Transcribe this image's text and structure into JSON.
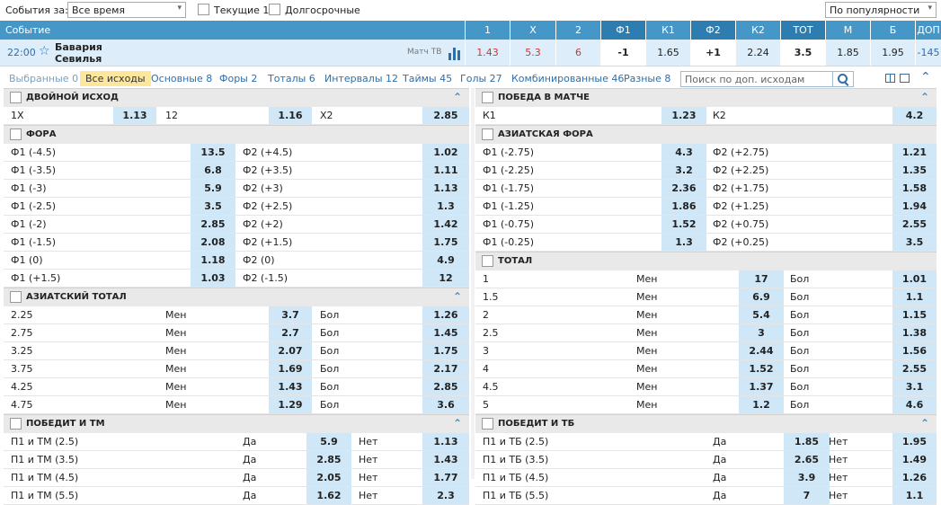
{
  "filter": {
    "events_label": "События за:",
    "period_value": "Все время",
    "current_label": "Текущие 1",
    "longterm_label": "Долгосрочные",
    "sort_value": "По популярности"
  },
  "header": {
    "event_col": "Событие",
    "cols": [
      "1",
      "X",
      "2",
      "Ф1",
      "К1",
      "Ф2",
      "К2",
      "ТОТ",
      "М",
      "Б",
      "ДОП"
    ]
  },
  "event": {
    "time": "22:00",
    "team1": "Бавария",
    "team2": "Севилья",
    "tv": "Матч ТВ",
    "odds": [
      "1.43",
      "5.3",
      "6",
      "-1",
      "1.65",
      "+1",
      "2.24",
      "3.5",
      "1.85",
      "1.95",
      "-145"
    ]
  },
  "tabs": [
    {
      "label": "Выбранные 0",
      "state": "muted"
    },
    {
      "label": "Все исходы",
      "state": "active"
    },
    {
      "label": "Основные 8",
      "state": ""
    },
    {
      "label": "Форы 2",
      "state": ""
    },
    {
      "label": "Тоталы 6",
      "state": ""
    },
    {
      "label": "Интервалы 12",
      "state": ""
    },
    {
      "label": "Таймы 45",
      "state": ""
    },
    {
      "label": "Голы 27",
      "state": ""
    },
    {
      "label": "Комбинированные 46",
      "state": ""
    },
    {
      "label": "Разные 8",
      "state": ""
    }
  ],
  "search": {
    "placeholder": "Поиск по доп. исходам"
  },
  "left": {
    "double": {
      "title": "ДВОЙНОЙ ИСХОД",
      "row": [
        "1X",
        "1.13",
        "12",
        "1.16",
        "X2",
        "2.85"
      ]
    },
    "fora": {
      "title": "ФОРА",
      "rows": [
        [
          "Ф1 (-4.5)",
          "13.5",
          "Ф2 (+4.5)",
          "1.02"
        ],
        [
          "Ф1 (-3.5)",
          "6.8",
          "Ф2 (+3.5)",
          "1.11"
        ],
        [
          "Ф1 (-3)",
          "5.9",
          "Ф2 (+3)",
          "1.13"
        ],
        [
          "Ф1 (-2.5)",
          "3.5",
          "Ф2 (+2.5)",
          "1.3"
        ],
        [
          "Ф1 (-2)",
          "2.85",
          "Ф2 (+2)",
          "1.42"
        ],
        [
          "Ф1 (-1.5)",
          "2.08",
          "Ф2 (+1.5)",
          "1.75"
        ],
        [
          "Ф1 (0)",
          "1.18",
          "Ф2 (0)",
          "4.9"
        ],
        [
          "Ф1 (+1.5)",
          "1.03",
          "Ф2 (-1.5)",
          "12"
        ]
      ]
    },
    "asiantotal": {
      "title": "АЗИАТСКИЙ ТОТАЛ",
      "rows": [
        [
          "2.25",
          "Мен",
          "3.7",
          "Бол",
          "1.26"
        ],
        [
          "2.75",
          "Мен",
          "2.7",
          "Бол",
          "1.45"
        ],
        [
          "3.25",
          "Мен",
          "2.07",
          "Бол",
          "1.75"
        ],
        [
          "3.75",
          "Мен",
          "1.69",
          "Бол",
          "2.17"
        ],
        [
          "4.25",
          "Мен",
          "1.43",
          "Бол",
          "2.85"
        ],
        [
          "4.75",
          "Мен",
          "1.29",
          "Бол",
          "3.6"
        ]
      ]
    },
    "winunder": {
      "title": "ПОБЕДИТ И ТМ",
      "rows": [
        [
          "П1 и ТМ (2.5)",
          "Да",
          "5.9",
          "Нет",
          "1.13"
        ],
        [
          "П1 и ТМ (3.5)",
          "Да",
          "2.85",
          "Нет",
          "1.43"
        ],
        [
          "П1 и ТМ (4.5)",
          "Да",
          "2.05",
          "Нет",
          "1.77"
        ],
        [
          "П1 и ТМ (5.5)",
          "Да",
          "1.62",
          "Нет",
          "2.3"
        ]
      ]
    }
  },
  "right": {
    "win": {
      "title": "ПОБЕДА В МАТЧЕ",
      "row": [
        "К1",
        "1.23",
        "К2",
        "4.2"
      ]
    },
    "asianfora": {
      "title": "АЗИАТСКАЯ ФОРА",
      "rows": [
        [
          "Ф1 (-2.75)",
          "4.3",
          "Ф2 (+2.75)",
          "1.21"
        ],
        [
          "Ф1 (-2.25)",
          "3.2",
          "Ф2 (+2.25)",
          "1.35"
        ],
        [
          "Ф1 (-1.75)",
          "2.36",
          "Ф2 (+1.75)",
          "1.58"
        ],
        [
          "Ф1 (-1.25)",
          "1.86",
          "Ф2 (+1.25)",
          "1.94"
        ],
        [
          "Ф1 (-0.75)",
          "1.52",
          "Ф2 (+0.75)",
          "2.55"
        ],
        [
          "Ф1 (-0.25)",
          "1.3",
          "Ф2 (+0.25)",
          "3.5"
        ]
      ]
    },
    "total": {
      "title": "ТОТАЛ",
      "rows": [
        [
          "1",
          "Мен",
          "17",
          "Бол",
          "1.01"
        ],
        [
          "1.5",
          "Мен",
          "6.9",
          "Бол",
          "1.1"
        ],
        [
          "2",
          "Мен",
          "5.4",
          "Бол",
          "1.15"
        ],
        [
          "2.5",
          "Мен",
          "3",
          "Бол",
          "1.38"
        ],
        [
          "3",
          "Мен",
          "2.44",
          "Бол",
          "1.56"
        ],
        [
          "4",
          "Мен",
          "1.52",
          "Бол",
          "2.55"
        ],
        [
          "4.5",
          "Мен",
          "1.37",
          "Бол",
          "3.1"
        ],
        [
          "5",
          "Мен",
          "1.2",
          "Бол",
          "4.6"
        ]
      ]
    },
    "winover": {
      "title": "ПОБЕДИТ И ТБ",
      "rows": [
        [
          "П1 и ТБ (2.5)",
          "Да",
          "1.85",
          "Нет",
          "1.95"
        ],
        [
          "П1 и ТБ (3.5)",
          "Да",
          "2.65",
          "Нет",
          "1.49"
        ],
        [
          "П1 и ТБ (4.5)",
          "Да",
          "3.9",
          "Нет",
          "1.26"
        ],
        [
          "П1 и ТБ (5.5)",
          "Да",
          "7",
          "Нет",
          "1.1"
        ]
      ]
    }
  },
  "colors": {
    "accent": "#4597c8",
    "odd_red": "#d9302c",
    "odd_cell": "#cfe7f6",
    "tab_active": "#fce79c"
  }
}
